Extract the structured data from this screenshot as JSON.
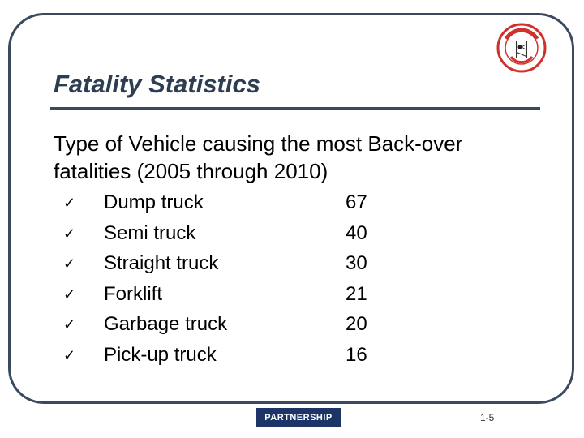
{
  "slide": {
    "title": "Fatality Statistics",
    "subtitle": "Type of Vehicle causing the most Back-over fatalities (2005 through 2010)",
    "items": [
      {
        "label": "Dump truck",
        "value": "67"
      },
      {
        "label": "Semi truck",
        "value": "40"
      },
      {
        "label": "Straight truck",
        "value": "30"
      },
      {
        "label": "Forklift",
        "value": "21"
      },
      {
        "label": "Garbage truck",
        "value": "20"
      },
      {
        "label": "Pick-up truck",
        "value": "16"
      }
    ],
    "bullet_icon": "check-mark",
    "footer_logo_text": "PARTNERSHIP",
    "page_number": "1-5",
    "colors": {
      "title": "#2e3e52",
      "frame": "#3a4a5e",
      "logo_red": "#d0312d",
      "footer_bg": "#1c3566"
    }
  }
}
